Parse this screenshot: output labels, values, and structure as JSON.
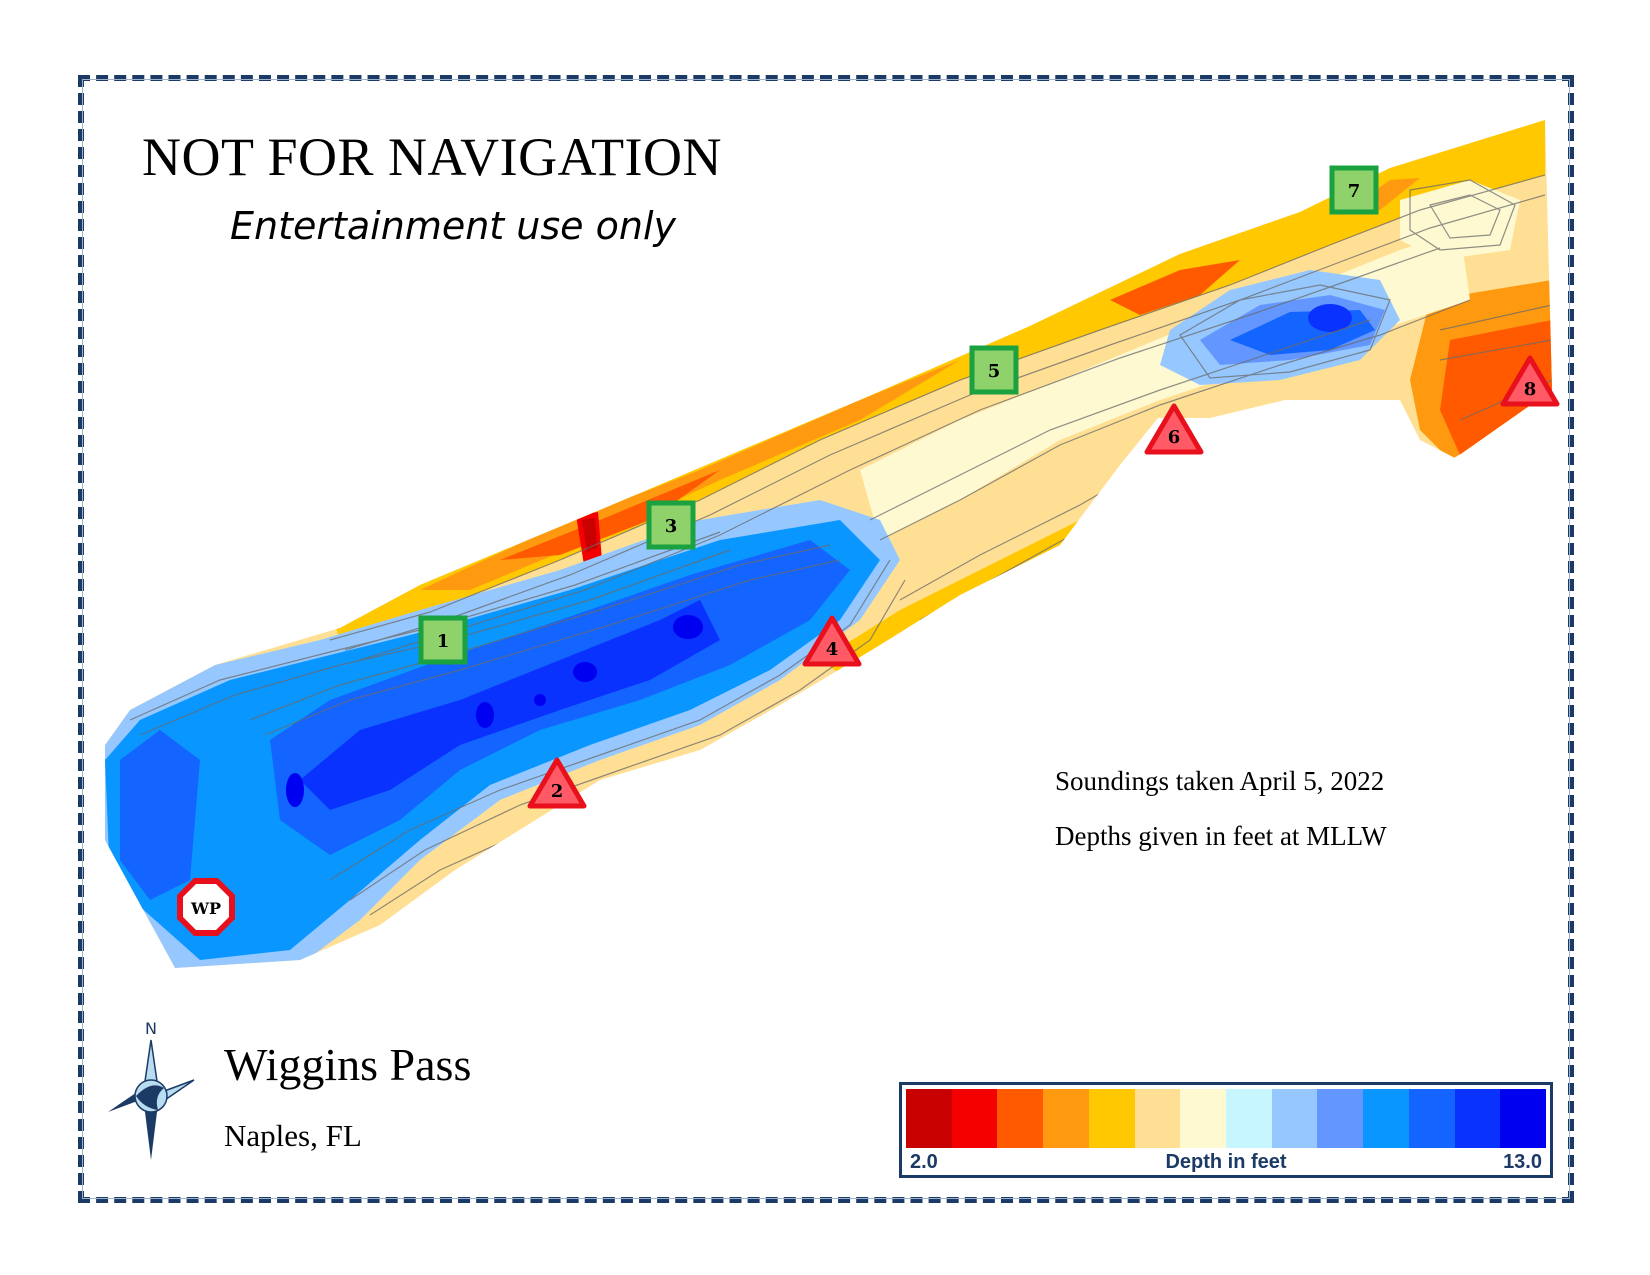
{
  "header": {
    "title": "NOT FOR NAVIGATION",
    "subtitle": "Entertainment use only"
  },
  "notes": {
    "soundings": "Soundings taken April 5, 2022",
    "depths": "Depths given in feet at MLLW"
  },
  "location": {
    "name": "Wiggins Pass",
    "city": "Naples, FL"
  },
  "compass": {
    "label": "N",
    "icon": "compass-rose-icon"
  },
  "legend": {
    "min_label": "2.0",
    "max_label": "13.0",
    "title": "Depth in feet",
    "colors": [
      "#c80000",
      "#f50000",
      "#ff5a00",
      "#ff9a10",
      "#ffc800",
      "#ffdf94",
      "#fff9d2",
      "#c8f6ff",
      "#96c8ff",
      "#6496ff",
      "#0a96ff",
      "#1464ff",
      "#0a32ff",
      "#0000f0"
    ]
  },
  "markers": {
    "green": [
      "1",
      "3",
      "5",
      "7"
    ],
    "red": [
      "2",
      "4",
      "6",
      "8"
    ],
    "waypoint": "WP"
  },
  "colors": {
    "frame": "#1c3a66",
    "marker_green": "#8fd16a",
    "marker_green_border": "#1aa140",
    "marker_red": "#ff5a66",
    "marker_red_border": "#e8101c"
  }
}
